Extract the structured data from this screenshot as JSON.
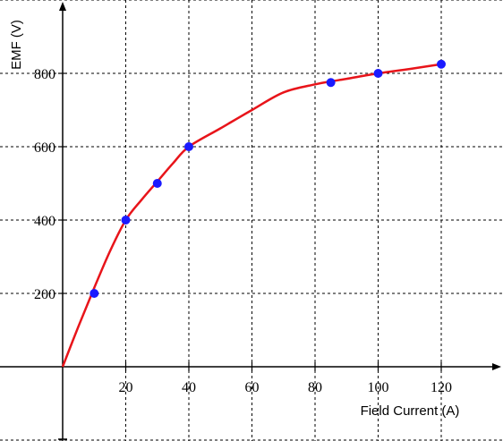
{
  "chart_data": {
    "type": "line",
    "xlabel": "Field Current (A)",
    "ylabel": "EMF (V)",
    "x_ticks": [
      20,
      40,
      60,
      80,
      100,
      120
    ],
    "y_ticks": [
      200,
      400,
      600,
      800
    ],
    "xlim": [
      -20,
      140
    ],
    "ylim": [
      -200,
      1000
    ],
    "grid": true,
    "series": [
      {
        "curve_color": "#e8141a",
        "marker_color": "#1a1aff",
        "points": {
          "x": [
            10,
            20,
            30,
            40,
            85,
            100,
            120
          ],
          "y": [
            200,
            400,
            500,
            600,
            775,
            800,
            825
          ]
        },
        "curve": {
          "x": [
            0,
            5,
            10,
            15,
            20,
            25,
            30,
            35,
            40,
            50,
            60,
            70,
            80,
            85,
            90,
            100,
            110,
            120
          ],
          "y": [
            0,
            110,
            215,
            315,
            400,
            455,
            505,
            555,
            600,
            650,
            700,
            748,
            770,
            778,
            785,
            800,
            812,
            825
          ]
        }
      }
    ]
  }
}
